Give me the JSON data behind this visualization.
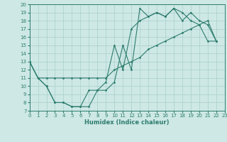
{
  "xlabel": "Humidex (Indice chaleur)",
  "xlim": [
    0,
    23
  ],
  "ylim": [
    7,
    20
  ],
  "xticks": [
    0,
    1,
    2,
    3,
    4,
    5,
    6,
    7,
    8,
    9,
    10,
    11,
    12,
    13,
    14,
    15,
    16,
    17,
    18,
    19,
    20,
    21,
    22,
    23
  ],
  "yticks": [
    7,
    8,
    9,
    10,
    11,
    12,
    13,
    14,
    15,
    16,
    17,
    18,
    19,
    20
  ],
  "line_color": "#2e7d6e",
  "bg_color": "#cde8e5",
  "grid_color": "#aacfcc",
  "line1_x": [
    0,
    1,
    2,
    3,
    4,
    5,
    6,
    7,
    8,
    9,
    10,
    11,
    12,
    13,
    14,
    15,
    16,
    17,
    18,
    19,
    20,
    21,
    22
  ],
  "line1_y": [
    13,
    11,
    10,
    8,
    8,
    7.5,
    7.5,
    7.5,
    9.5,
    9.5,
    10.5,
    15,
    12,
    19.5,
    18.5,
    19,
    18.5,
    19.5,
    18,
    19,
    18,
    17.5,
    15.5
  ],
  "line2_x": [
    0,
    1,
    2,
    3,
    4,
    5,
    6,
    7,
    8,
    9,
    10,
    11,
    12,
    13,
    14,
    15,
    16,
    17,
    18,
    19,
    20,
    21,
    22
  ],
  "line2_y": [
    13,
    11,
    11,
    11,
    11,
    11,
    11,
    11,
    11,
    11,
    12,
    12.5,
    13,
    13.5,
    14.5,
    15,
    15.5,
    16,
    16.5,
    17,
    17.5,
    18,
    15.5
  ],
  "line3_x": [
    0,
    1,
    2,
    3,
    4,
    5,
    6,
    7,
    8,
    9,
    10,
    11,
    12,
    13,
    14,
    15,
    16,
    17,
    18,
    19,
    20,
    21,
    22
  ],
  "line3_y": [
    13,
    11,
    10,
    8,
    8,
    7.5,
    7.5,
    9.5,
    9.5,
    10.5,
    15,
    12,
    17,
    18,
    18.5,
    19,
    18.5,
    19.5,
    19,
    18,
    17.5,
    15.5,
    15.5
  ]
}
